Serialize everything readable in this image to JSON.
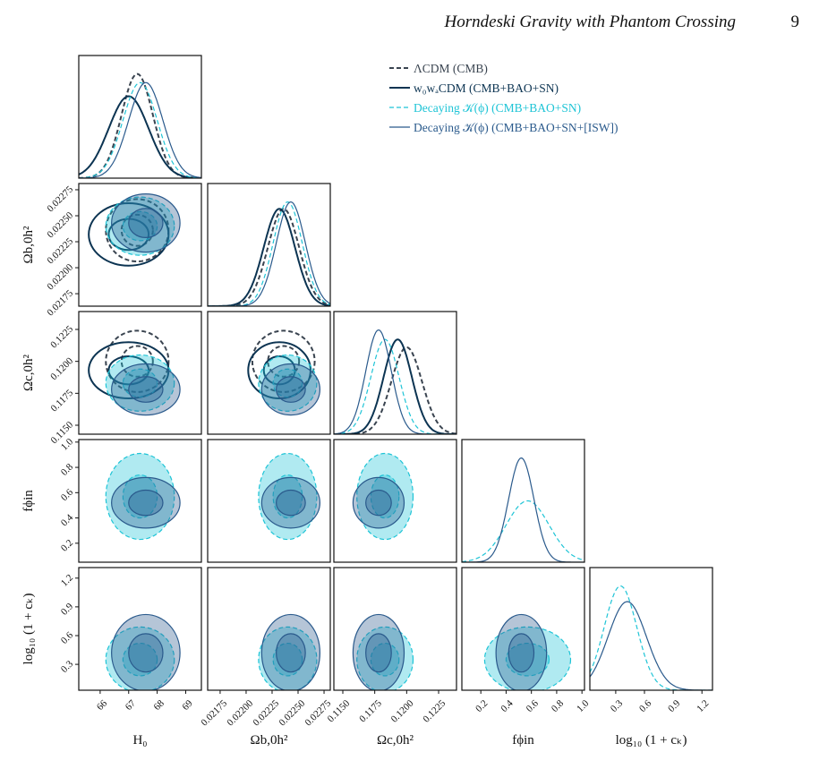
{
  "header": {
    "title": "Horndeski Gravity with Phantom Crossing",
    "page": "9"
  },
  "chart_data": {
    "type": "corner",
    "parameters": [
      {
        "label": "H₀",
        "lim": [
          65.25,
          69.55
        ],
        "ticks": [
          66,
          67,
          68,
          69
        ]
      },
      {
        "label": "Ωb,0h²",
        "lim": [
          0.02163,
          0.02281
        ],
        "ticks": [
          0.02175,
          {
            "value": 0.022,
            "label": "0.02200"
          },
          0.02225,
          {
            "value": 0.0225,
            "label": "0.02250"
          },
          0.02275
        ]
      },
      {
        "label": "Ωc,0h²",
        "lim": [
          0.1143,
          0.1239
        ],
        "ticks": [
          {
            "value": 0.115,
            "label": "0.1150"
          },
          {
            "value": 0.1175,
            "label": "0.1175"
          },
          {
            "value": 0.12,
            "label": "0.1200"
          },
          0.1225
        ]
      },
      {
        "label": "fϕin",
        "lim": [
          0.05,
          1.02
        ],
        "ticks": [
          0.2,
          0.4,
          0.6,
          0.8,
          {
            "value": 1.0,
            "label": "1.0"
          }
        ]
      },
      {
        "label": "log₁₀ (1 + cₖ)",
        "lim": [
          0.03,
          1.31
        ],
        "ticks": [
          0.3,
          0.6,
          0.9,
          1.2
        ]
      }
    ],
    "series": [
      {
        "name": "ΛCDM (CMB)",
        "color": "#3a4450",
        "dash": true,
        "filled": false,
        "mean": [
          67.3,
          0.02236,
          0.12,
          null,
          null
        ],
        "sigma": [
          0.55,
          0.00015,
          0.0012,
          null,
          null
        ]
      },
      {
        "name": "w₀wₐCDM (CMB+BAO+SN)",
        "color": "#0c3452",
        "dash": false,
        "filled": false,
        "mean": [
          67.0,
          0.02232,
          0.1193,
          null,
          null
        ],
        "sigma": [
          0.7,
          0.00015,
          0.0011,
          null,
          null
        ]
      },
      {
        "name": "Decaying 𝒦(ϕ) (CMB+BAO+SN)",
        "color": "#1ec4d6",
        "dash": true,
        "filled": true,
        "mean": [
          67.4,
          0.0224,
          0.1183,
          0.57,
          0.35
        ],
        "sigma": [
          0.6,
          0.00014,
          0.0011,
          0.17,
          0.17
        ]
      },
      {
        "name": "Decaying 𝒦(ϕ) (CMB+BAO+SN+[ISW])",
        "color": "#2a5a8c",
        "dash": false,
        "filled": true,
        "mean": [
          67.6,
          0.02243,
          0.1178,
          0.52,
          0.42
        ],
        "sigma": [
          0.6,
          0.00014,
          0.001,
          0.1,
          0.2
        ]
      }
    ]
  }
}
